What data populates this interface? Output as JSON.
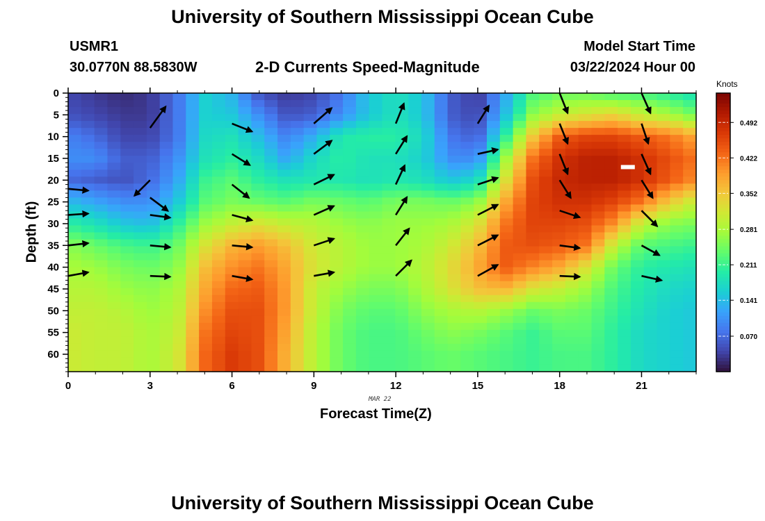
{
  "header": {
    "title": "University of Southern Mississippi Ocean Cube",
    "station": "USMR1",
    "coords": "30.0770N  88.5830W",
    "subtitle": "2-D Currents Speed-Magnitude",
    "start_label": "Model Start Time",
    "start_value": "03/22/2024 Hour 00"
  },
  "footer": {
    "title": "University of Southern Mississippi Ocean Cube"
  },
  "chart_data": {
    "type": "heatmap",
    "title": "2-D Currents Speed-Magnitude",
    "xlabel": "Forecast Time(Z)",
    "ylabel": "Depth (ft)",
    "date_label": "MAR 22",
    "xlim": [
      0,
      23
    ],
    "ylim": [
      64,
      0
    ],
    "x_ticks": [
      0,
      3,
      6,
      9,
      12,
      15,
      18,
      21
    ],
    "y_ticks": [
      0,
      5,
      10,
      15,
      20,
      25,
      30,
      35,
      40,
      45,
      50,
      55,
      60
    ],
    "colorbar": {
      "unit": "Knots",
      "range": [
        0.0,
        0.55
      ],
      "ticks": [
        "0.070",
        "0.141",
        "0.211",
        "0.281",
        "0.352",
        "0.422",
        "0.492"
      ],
      "colors": [
        "#30123b",
        "#4145ab",
        "#4675ed",
        "#39a2fc",
        "#1bcfd4",
        "#24eca6",
        "#61fc6c",
        "#a4fc3b",
        "#d1e834",
        "#f3c63a",
        "#fe9b2d",
        "#f36315",
        "#d93806",
        "#b11901",
        "#7a0402"
      ]
    },
    "depths": [
      0,
      5,
      10,
      15,
      20,
      25,
      30,
      35,
      40,
      45,
      50,
      55,
      60
    ],
    "speed_grid": [
      [
        0.04,
        0.03,
        0.02,
        0.03,
        0.08,
        0.16,
        0.13,
        0.05,
        0.03,
        0.04,
        0.08,
        0.15,
        0.18,
        0.15,
        0.06,
        0.03,
        0.12,
        0.22,
        0.24,
        0.24,
        0.22,
        0.22,
        0.2,
        0.18
      ],
      [
        0.05,
        0.04,
        0.03,
        0.03,
        0.08,
        0.16,
        0.15,
        0.1,
        0.05,
        0.06,
        0.1,
        0.15,
        0.18,
        0.15,
        0.06,
        0.04,
        0.14,
        0.26,
        0.3,
        0.32,
        0.34,
        0.3,
        0.28,
        0.24
      ],
      [
        0.09,
        0.07,
        0.04,
        0.04,
        0.08,
        0.17,
        0.18,
        0.14,
        0.09,
        0.13,
        0.19,
        0.2,
        0.2,
        0.17,
        0.08,
        0.06,
        0.2,
        0.35,
        0.44,
        0.46,
        0.46,
        0.44,
        0.42,
        0.38
      ],
      [
        0.1,
        0.1,
        0.06,
        0.06,
        0.1,
        0.18,
        0.2,
        0.17,
        0.12,
        0.17,
        0.2,
        0.18,
        0.18,
        0.16,
        0.1,
        0.1,
        0.27,
        0.42,
        0.48,
        0.5,
        0.5,
        0.48,
        0.45,
        0.42
      ],
      [
        0.07,
        0.06,
        0.05,
        0.07,
        0.12,
        0.21,
        0.23,
        0.2,
        0.18,
        0.19,
        0.19,
        0.18,
        0.19,
        0.18,
        0.15,
        0.17,
        0.32,
        0.45,
        0.49,
        0.5,
        0.5,
        0.48,
        0.44,
        0.4
      ],
      [
        0.14,
        0.12,
        0.1,
        0.1,
        0.15,
        0.23,
        0.25,
        0.24,
        0.23,
        0.25,
        0.24,
        0.23,
        0.25,
        0.25,
        0.24,
        0.26,
        0.38,
        0.46,
        0.48,
        0.48,
        0.46,
        0.42,
        0.35,
        0.3
      ],
      [
        0.2,
        0.18,
        0.15,
        0.14,
        0.2,
        0.27,
        0.3,
        0.32,
        0.3,
        0.29,
        0.27,
        0.26,
        0.27,
        0.27,
        0.28,
        0.32,
        0.42,
        0.46,
        0.46,
        0.45,
        0.4,
        0.3,
        0.26,
        0.25
      ],
      [
        0.26,
        0.24,
        0.22,
        0.21,
        0.24,
        0.32,
        0.37,
        0.39,
        0.36,
        0.31,
        0.29,
        0.27,
        0.27,
        0.28,
        0.31,
        0.36,
        0.44,
        0.45,
        0.44,
        0.42,
        0.3,
        0.23,
        0.22,
        0.21
      ],
      [
        0.28,
        0.27,
        0.25,
        0.24,
        0.26,
        0.36,
        0.4,
        0.42,
        0.38,
        0.32,
        0.29,
        0.27,
        0.27,
        0.29,
        0.33,
        0.38,
        0.44,
        0.41,
        0.38,
        0.32,
        0.24,
        0.2,
        0.19,
        0.18
      ],
      [
        0.29,
        0.29,
        0.27,
        0.26,
        0.28,
        0.38,
        0.43,
        0.44,
        0.39,
        0.3,
        0.27,
        0.25,
        0.25,
        0.28,
        0.32,
        0.36,
        0.37,
        0.32,
        0.3,
        0.27,
        0.22,
        0.19,
        0.17,
        0.16
      ],
      [
        0.3,
        0.3,
        0.29,
        0.27,
        0.29,
        0.4,
        0.45,
        0.45,
        0.39,
        0.3,
        0.25,
        0.23,
        0.23,
        0.26,
        0.28,
        0.29,
        0.27,
        0.24,
        0.25,
        0.24,
        0.21,
        0.18,
        0.16,
        0.15
      ],
      [
        0.31,
        0.3,
        0.3,
        0.28,
        0.3,
        0.42,
        0.46,
        0.45,
        0.38,
        0.29,
        0.24,
        0.22,
        0.22,
        0.24,
        0.26,
        0.25,
        0.23,
        0.21,
        0.23,
        0.23,
        0.2,
        0.17,
        0.16,
        0.15
      ],
      [
        0.31,
        0.3,
        0.3,
        0.28,
        0.31,
        0.43,
        0.47,
        0.45,
        0.37,
        0.29,
        0.24,
        0.22,
        0.22,
        0.23,
        0.24,
        0.23,
        0.22,
        0.21,
        0.22,
        0.22,
        0.2,
        0.17,
        0.16,
        0.15
      ]
    ],
    "arrow_times": [
      0,
      3,
      6,
      9,
      12,
      15,
      18,
      21
    ],
    "arrow_depths": [
      3,
      8,
      14,
      20,
      26,
      32,
      38,
      43
    ],
    "arrows": [
      [
        [
          0,
          22,
          4.5,
          -0.4
        ],
        [
          0,
          28,
          4.5,
          0.3
        ],
        [
          0,
          35,
          4.5,
          0.5
        ],
        [
          0,
          42,
          4.5,
          0.8
        ]
      ],
      [
        [
          3,
          8,
          3.5,
          4.8
        ],
        [
          3,
          20,
          -3.5,
          -3.5
        ],
        [
          3,
          24,
          4.0,
          -3.0
        ],
        [
          3,
          28,
          4.5,
          -0.6
        ],
        [
          3,
          35,
          4.5,
          -0.4
        ],
        [
          3,
          42,
          4.5,
          -0.2
        ]
      ],
      [
        [
          6,
          7,
          4.5,
          -1.8
        ],
        [
          6,
          14,
          4.0,
          -2.5
        ],
        [
          6,
          21,
          3.8,
          -3.0
        ],
        [
          6,
          28,
          4.5,
          -1.2
        ],
        [
          6,
          35,
          4.5,
          -0.4
        ],
        [
          6,
          42,
          4.5,
          -0.8
        ]
      ],
      [
        [
          9,
          7,
          4.0,
          3.5
        ],
        [
          9,
          14,
          4.0,
          3.0
        ],
        [
          9,
          21,
          4.5,
          2.2
        ],
        [
          9,
          28,
          4.5,
          2.0
        ],
        [
          9,
          35,
          4.5,
          1.5
        ],
        [
          9,
          42,
          4.5,
          0.8
        ]
      ],
      [
        [
          12,
          7,
          1.8,
          4.5
        ],
        [
          12,
          14,
          2.5,
          4.0
        ],
        [
          12,
          21,
          2.0,
          4.3
        ],
        [
          12,
          28,
          2.5,
          4.0
        ],
        [
          12,
          35,
          3.0,
          3.8
        ],
        [
          12,
          42,
          3.5,
          3.5
        ]
      ],
      [
        [
          15,
          7,
          2.5,
          4.0
        ],
        [
          15,
          14,
          4.5,
          1.0
        ],
        [
          15,
          21,
          4.5,
          1.5
        ],
        [
          15,
          28,
          4.5,
          2.3
        ],
        [
          15,
          35,
          4.5,
          2.3
        ],
        [
          15,
          42,
          4.5,
          2.5
        ]
      ],
      [
        [
          18,
          0,
          1.8,
          -4.5
        ],
        [
          18,
          7,
          1.8,
          -4.5
        ],
        [
          18,
          14,
          1.8,
          -4.5
        ],
        [
          18,
          20,
          2.5,
          -4.0
        ],
        [
          18,
          27,
          4.5,
          -1.5
        ],
        [
          18,
          35,
          4.5,
          -0.6
        ],
        [
          18,
          42,
          4.5,
          -0.2
        ]
      ],
      [
        [
          21,
          0,
          2.0,
          -4.5
        ],
        [
          21,
          7,
          1.5,
          -4.5
        ],
        [
          21,
          14,
          2.0,
          -4.5
        ],
        [
          21,
          20,
          2.5,
          -4.0
        ],
        [
          21,
          27,
          3.5,
          -3.5
        ],
        [
          21,
          35,
          4.0,
          -2.2
        ],
        [
          21,
          42,
          4.5,
          -1.0
        ]
      ]
    ],
    "marker": {
      "time": 20.5,
      "depth": 17,
      "color": "#ffffff"
    }
  }
}
